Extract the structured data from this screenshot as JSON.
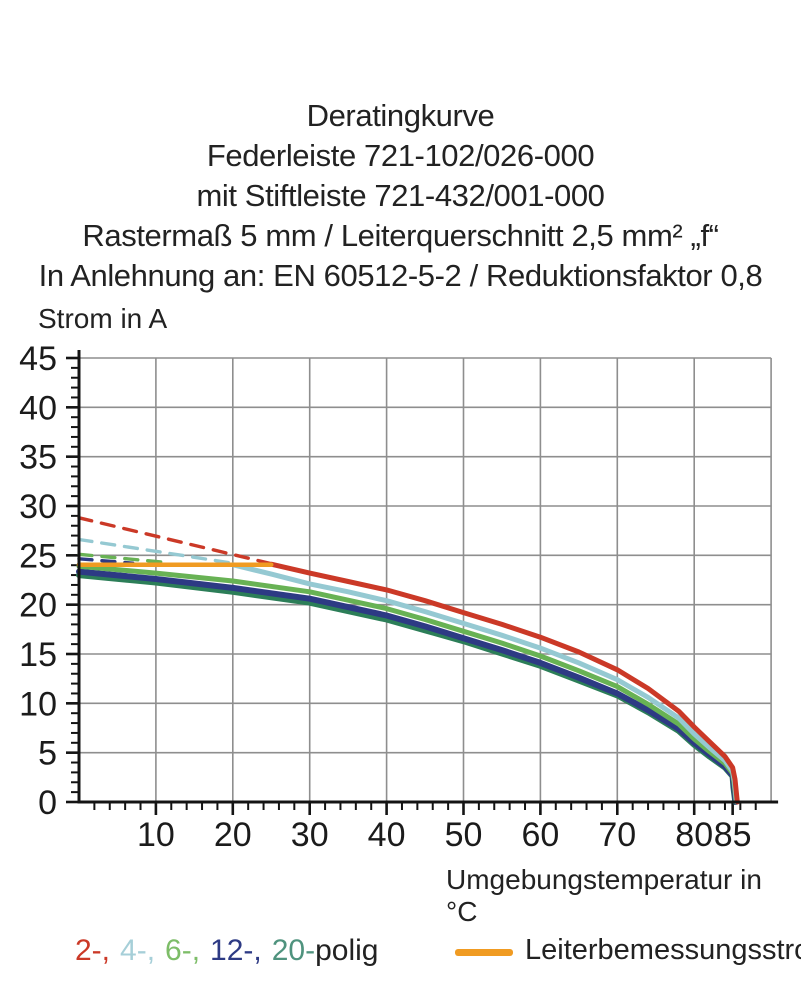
{
  "header": {
    "lines": [
      "Deratingkurve",
      "Federleiste 721-102/026-000",
      "mit Stiftleiste 721-432/001-000",
      "Rastermaß 5 mm / Leiterquerschnitt 2,5 mm² „f“",
      "In Anlehnung an: EN 60512-5-2 / Reduktionsfaktor 0,8"
    ]
  },
  "chart_data": {
    "type": "line",
    "ylabel": "Strom in A",
    "xlabel": "Umgebungstemperatur in °C",
    "xlim": [
      0,
      90
    ],
    "ylim": [
      0,
      45
    ],
    "grid": "on",
    "x_grid_step": 10,
    "y_grid_step": 5,
    "x_minor_step": 2,
    "y_minor_step": 1,
    "x_major_ticks": [
      10,
      20,
      30,
      40,
      50,
      60,
      70,
      80,
      85
    ],
    "y_major_ticks": [
      0,
      5,
      10,
      15,
      20,
      25,
      30,
      35,
      40,
      45
    ],
    "grid_color": "#8e8e8e",
    "axis_color": "#141414",
    "series": [
      {
        "name": "2-polig",
        "color": "#cb3927",
        "dashed": [
          [
            0,
            28.8
          ],
          [
            25,
            24.15
          ]
        ],
        "solid": [
          [
            25,
            24.1
          ],
          [
            30,
            23.2
          ],
          [
            35,
            22.35
          ],
          [
            40,
            21.5
          ],
          [
            45,
            20.4
          ],
          [
            50,
            19.2
          ],
          [
            55,
            18.0
          ],
          [
            60,
            16.7
          ],
          [
            65,
            15.2
          ],
          [
            70,
            13.4
          ],
          [
            74,
            11.5
          ],
          [
            78,
            9.2
          ],
          [
            80,
            7.6
          ],
          [
            82,
            6.1
          ],
          [
            84,
            4.6
          ],
          [
            85,
            3.5
          ],
          [
            85.3,
            2.3
          ],
          [
            85.6,
            0
          ]
        ]
      },
      {
        "name": "4-polig",
        "color": "#95c9d2",
        "dashed": [
          [
            0,
            26.6
          ],
          [
            20,
            24.2
          ]
        ],
        "solid": [
          [
            20,
            24.05
          ],
          [
            25,
            23.1
          ],
          [
            30,
            22.1
          ],
          [
            35,
            21.3
          ],
          [
            40,
            20.4
          ],
          [
            45,
            19.3
          ],
          [
            50,
            18.1
          ],
          [
            55,
            16.9
          ],
          [
            60,
            15.6
          ],
          [
            65,
            14.1
          ],
          [
            70,
            12.4
          ],
          [
            74,
            10.6
          ],
          [
            78,
            8.5
          ],
          [
            80,
            6.9
          ],
          [
            82,
            5.5
          ],
          [
            84,
            4.2
          ],
          [
            85,
            3.1
          ],
          [
            85.25,
            2.0
          ],
          [
            85.5,
            0
          ]
        ]
      },
      {
        "name": "6-polig",
        "color": "#68b254",
        "dashed": [
          [
            0,
            25.1
          ],
          [
            11,
            24.3
          ]
        ],
        "solid": [
          [
            0,
            23.9
          ],
          [
            10,
            23.2
          ],
          [
            20,
            22.4
          ],
          [
            30,
            21.3
          ],
          [
            40,
            19.6
          ],
          [
            45,
            18.5
          ],
          [
            50,
            17.3
          ],
          [
            55,
            16.1
          ],
          [
            60,
            14.8
          ],
          [
            65,
            13.3
          ],
          [
            70,
            11.7
          ],
          [
            74,
            9.9
          ],
          [
            78,
            7.9
          ],
          [
            80,
            6.4
          ],
          [
            82,
            5.1
          ],
          [
            84,
            3.9
          ],
          [
            85,
            2.9
          ],
          [
            85.2,
            1.8
          ],
          [
            85.45,
            0
          ]
        ]
      },
      {
        "name": "12-polig",
        "color": "#2d3a84",
        "dashed": [
          [
            0,
            24.65
          ],
          [
            7,
            24.2
          ]
        ],
        "solid": [
          [
            0,
            23.35
          ],
          [
            10,
            22.6
          ],
          [
            20,
            21.7
          ],
          [
            30,
            20.6
          ],
          [
            40,
            18.9
          ],
          [
            45,
            17.8
          ],
          [
            50,
            16.6
          ],
          [
            55,
            15.4
          ],
          [
            60,
            14.1
          ],
          [
            65,
            12.6
          ],
          [
            70,
            11.0
          ],
          [
            74,
            9.3
          ],
          [
            78,
            7.4
          ],
          [
            80,
            6.0
          ],
          [
            82,
            4.8
          ],
          [
            84,
            3.6
          ],
          [
            85,
            2.7
          ],
          [
            85.15,
            1.6
          ],
          [
            85.4,
            0
          ]
        ]
      },
      {
        "name": "20-polig",
        "color": "#2c7e58",
        "dashed": [],
        "solid": [
          [
            0,
            23.0
          ],
          [
            10,
            22.25
          ],
          [
            20,
            21.3
          ],
          [
            30,
            20.2
          ],
          [
            40,
            18.5
          ],
          [
            45,
            17.4
          ],
          [
            50,
            16.3
          ],
          [
            55,
            15.05
          ],
          [
            60,
            13.8
          ],
          [
            65,
            12.3
          ],
          [
            70,
            10.8
          ],
          [
            74,
            9.1
          ],
          [
            78,
            7.2
          ],
          [
            80,
            5.8
          ],
          [
            82,
            4.6
          ],
          [
            84,
            3.5
          ],
          [
            85,
            2.6
          ],
          [
            85.1,
            1.5
          ],
          [
            85.35,
            0
          ]
        ]
      }
    ],
    "reference_line": {
      "label": "Leiterbemessungsstrom",
      "color": "#f09b22",
      "y": 24.05,
      "x_range": [
        0,
        25
      ]
    },
    "legend_pole_items": [
      {
        "text": "2-,",
        "color": "#cb3927"
      },
      {
        "text": "4-,",
        "color": "#a6cfd8"
      },
      {
        "text": "6-,",
        "color": "#7dbd68"
      },
      {
        "text": "12-,",
        "color": "#2d3a84"
      },
      {
        "text": "20-",
        "color": "#4f937e"
      },
      {
        "text": "polig",
        "color": "#222222"
      }
    ]
  }
}
